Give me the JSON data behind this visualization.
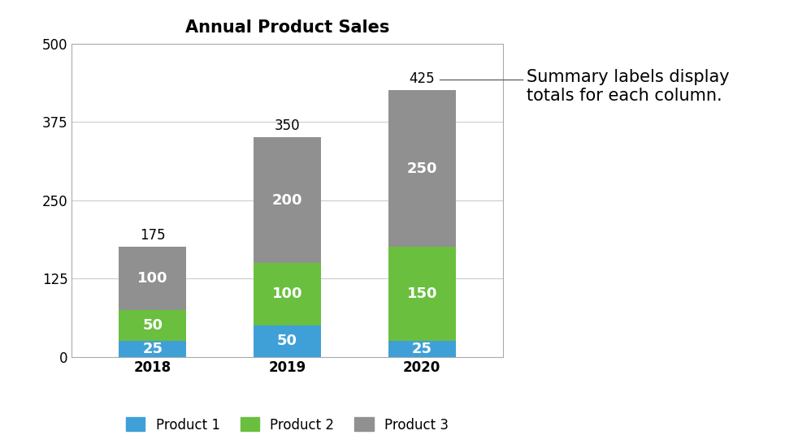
{
  "title": "Annual Product Sales",
  "years": [
    "2018",
    "2019",
    "2020"
  ],
  "product1": [
    25,
    50,
    25
  ],
  "product2": [
    50,
    100,
    150
  ],
  "product3": [
    100,
    200,
    250
  ],
  "totals": [
    175,
    350,
    425
  ],
  "colors": {
    "product1": "#3fa0d8",
    "product2": "#6abf3f",
    "product3": "#909090"
  },
  "legend_labels": [
    "Product 1",
    "Product 2",
    "Product 3"
  ],
  "ylim": [
    0,
    500
  ],
  "yticks": [
    0,
    125,
    250,
    375,
    500
  ],
  "annotation_text": "Summary labels display\ntotals for each column.",
  "background_color": "#ffffff",
  "border_color": "#aaaaaa",
  "title_fontsize": 15,
  "label_fontsize": 13,
  "tick_fontsize": 12,
  "legend_fontsize": 12,
  "annotation_fontsize": 15,
  "bar_width": 0.5
}
